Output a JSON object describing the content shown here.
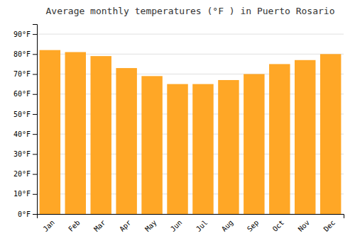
{
  "chart_data": {
    "type": "bar",
    "title": "Average monthly temperatures (°F ) in Puerto Rosario",
    "categories": [
      "Jan",
      "Feb",
      "Mar",
      "Apr",
      "May",
      "Jun",
      "Jul",
      "Aug",
      "Sep",
      "Oct",
      "Nov",
      "Dec"
    ],
    "values": [
      82,
      81,
      79,
      73,
      69,
      65,
      65,
      67,
      70,
      75,
      77,
      80
    ],
    "color": "#FFA726",
    "ylim": [
      0,
      95
    ],
    "yticks": [
      {
        "value": 0,
        "label": "0°F"
      },
      {
        "value": 10,
        "label": "10°F"
      },
      {
        "value": 20,
        "label": "20°F"
      },
      {
        "value": 30,
        "label": "30°F"
      },
      {
        "value": 40,
        "label": "40°F"
      },
      {
        "value": 50,
        "label": "50°F"
      },
      {
        "value": 60,
        "label": "60°F"
      },
      {
        "value": 70,
        "label": "70°F"
      },
      {
        "value": 80,
        "label": "80°F"
      },
      {
        "value": 90,
        "label": "90°F"
      }
    ],
    "grid": true
  }
}
